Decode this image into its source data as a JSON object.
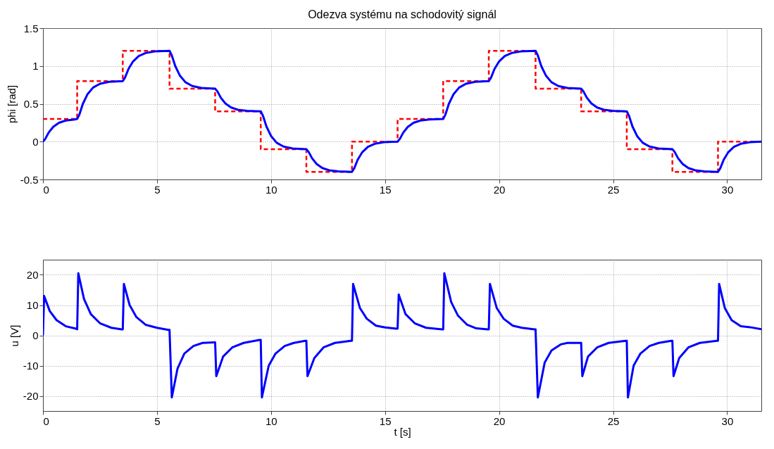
{
  "chart_data": [
    {
      "type": "line",
      "title": "Odezva systému na schodovitý signál",
      "ylabel": "phi [rad]",
      "xlim": [
        0,
        31.5
      ],
      "xticks": [
        0,
        5,
        10,
        15,
        20,
        25,
        30
      ],
      "ylim": [
        -0.5,
        1.5
      ],
      "yticks": [
        -0.5,
        0,
        0.5,
        1,
        1.5
      ],
      "grid": true,
      "series": [
        {
          "type": "step",
          "color": "#ff0000",
          "line_style": "dashed",
          "x": [
            0,
            1.5,
            3.5,
            5.55,
            7.55,
            9.55,
            11.55,
            13.55,
            15.55,
            17.55,
            19.55,
            21.6,
            23.6,
            25.6,
            27.6,
            29.6,
            31.5
          ],
          "values": [
            0.3,
            0.8,
            1.2,
            0.7,
            0.4,
            -0.1,
            -0.4,
            0,
            0.3,
            0.8,
            1.2,
            0.7,
            0.4,
            -0.1,
            -0.4,
            0,
            0
          ]
        },
        {
          "type": "line",
          "color": "#0000ff",
          "line_style": "solid",
          "x": [
            0,
            0.1,
            0.25,
            0.45,
            0.7,
            1.0,
            1.4,
            1.5,
            1.6,
            1.75,
            1.95,
            2.2,
            2.5,
            2.9,
            3.5,
            3.6,
            3.75,
            3.95,
            4.2,
            4.5,
            4.9,
            5.55,
            5.65,
            5.8,
            6.0,
            6.25,
            6.55,
            6.95,
            7.55,
            7.65,
            7.8,
            8.0,
            8.25,
            8.55,
            8.95,
            9.55,
            9.65,
            9.8,
            10.0,
            10.25,
            10.55,
            10.95,
            11.55,
            11.65,
            11.8,
            12.0,
            12.25,
            12.55,
            12.95,
            13.55,
            13.65,
            13.8,
            14.0,
            14.25,
            14.55,
            14.95,
            15.55,
            15.65,
            15.8,
            16.0,
            16.25,
            16.55,
            16.95,
            17.55,
            17.65,
            17.8,
            18.0,
            18.25,
            18.55,
            18.95,
            19.55,
            19.65,
            19.8,
            20.0,
            20.25,
            20.55,
            20.95,
            21.6,
            21.7,
            21.85,
            22.05,
            22.3,
            22.6,
            23.0,
            23.6,
            23.7,
            23.85,
            24.05,
            24.3,
            24.6,
            25.0,
            25.6,
            25.7,
            25.85,
            26.05,
            26.3,
            26.6,
            27.0,
            27.6,
            27.7,
            27.85,
            28.05,
            28.3,
            28.6,
            29.0,
            29.6,
            29.7,
            29.85,
            30.05,
            30.3,
            30.6,
            31.0,
            31.5
          ],
          "values": [
            0,
            0.036,
            0.12,
            0.195,
            0.249,
            0.279,
            0.294,
            0.3,
            0.36,
            0.5,
            0.625,
            0.715,
            0.765,
            0.79,
            0.8,
            0.848,
            0.96,
            1.06,
            1.132,
            1.172,
            1.192,
            1.2,
            1.14,
            1.0,
            0.875,
            0.785,
            0.735,
            0.71,
            0.7,
            0.664,
            0.58,
            0.505,
            0.451,
            0.421,
            0.406,
            0.4,
            0.34,
            0.2,
            0.075,
            -0.015,
            -0.065,
            -0.09,
            -0.1,
            -0.136,
            -0.22,
            -0.295,
            -0.349,
            -0.379,
            -0.394,
            -0.4,
            -0.352,
            -0.24,
            -0.14,
            -0.068,
            -0.028,
            -0.008,
            0,
            0.036,
            0.12,
            0.195,
            0.249,
            0.279,
            0.294,
            0.3,
            0.36,
            0.5,
            0.625,
            0.715,
            0.765,
            0.79,
            0.8,
            0.848,
            0.96,
            1.06,
            1.132,
            1.172,
            1.192,
            1.2,
            1.14,
            1.0,
            0.875,
            0.785,
            0.735,
            0.71,
            0.7,
            0.664,
            0.58,
            0.505,
            0.451,
            0.421,
            0.406,
            0.4,
            0.34,
            0.2,
            0.075,
            -0.015,
            -0.065,
            -0.09,
            -0.1,
            -0.136,
            -0.22,
            -0.295,
            -0.349,
            -0.379,
            -0.394,
            -0.4,
            -0.352,
            -0.24,
            -0.14,
            -0.068,
            -0.028,
            -0.008,
            0
          ]
        }
      ]
    },
    {
      "type": "line",
      "ylabel": "u [V]",
      "xlabel": "t [s]",
      "xlim": [
        0,
        31.5
      ],
      "xticks": [
        0,
        5,
        10,
        15,
        20,
        25,
        30
      ],
      "ylim": [
        -25,
        25
      ],
      "yticks": [
        -20,
        -10,
        0,
        10,
        20
      ],
      "grid": true,
      "series": [
        {
          "type": "line",
          "color": "#0000ff",
          "line_style": "solid",
          "x": [
            0,
            0.05,
            0.3,
            0.6,
            1.0,
            1.45,
            1.5,
            1.55,
            1.8,
            2.1,
            2.5,
            3.0,
            3.45,
            3.5,
            3.55,
            3.8,
            4.1,
            4.5,
            5.0,
            5.5,
            5.55,
            5.65,
            5.9,
            6.2,
            6.6,
            7.0,
            7.5,
            7.55,
            7.6,
            7.9,
            8.3,
            8.8,
            9.5,
            9.55,
            9.6,
            9.9,
            10.2,
            10.6,
            11.0,
            11.5,
            11.55,
            11.6,
            11.9,
            12.3,
            12.8,
            13.5,
            13.55,
            13.6,
            13.9,
            14.2,
            14.6,
            15.0,
            15.5,
            15.55,
            15.6,
            15.9,
            16.3,
            16.8,
            17.5,
            17.55,
            17.6,
            17.9,
            18.2,
            18.6,
            19.0,
            19.5,
            19.55,
            19.6,
            19.9,
            20.2,
            20.6,
            21.0,
            21.55,
            21.6,
            21.7,
            22.0,
            22.3,
            22.7,
            23.0,
            23.55,
            23.6,
            23.65,
            23.9,
            24.3,
            24.8,
            25.55,
            25.6,
            25.65,
            25.9,
            26.2,
            26.6,
            27.0,
            27.55,
            27.6,
            27.65,
            27.9,
            28.3,
            28.8,
            29.55,
            29.6,
            29.65,
            29.9,
            30.2,
            30.6,
            31.0,
            31.5
          ],
          "values": [
            0,
            13,
            8,
            5,
            3,
            2.2,
            2,
            20.5,
            12,
            7,
            4,
            2.5,
            2,
            2,
            17,
            10,
            6,
            3.5,
            2.5,
            1.8,
            1.8,
            -20.5,
            -11,
            -6,
            -3.5,
            -2.5,
            -2.3,
            -2.3,
            -13.5,
            -7,
            -4,
            -2.5,
            -1.5,
            -1.5,
            -20.5,
            -10,
            -6,
            -3.5,
            -2.5,
            -1.8,
            -1.8,
            -13.5,
            -7.5,
            -4,
            -2.5,
            -1.8,
            -1.8,
            17,
            9,
            5.5,
            3.2,
            2.6,
            2.2,
            2.2,
            13.5,
            7,
            4,
            2.5,
            2,
            2,
            20.5,
            11,
            6.5,
            3.5,
            2.3,
            2,
            2,
            17,
            9,
            5.5,
            3.2,
            2.5,
            2,
            2,
            -20.5,
            -9,
            -5,
            -3,
            -2.5,
            -2.5,
            -2.5,
            -13.5,
            -7,
            -4,
            -2.5,
            -1.8,
            -1.8,
            -20.5,
            -10,
            -6,
            -3.5,
            -2.5,
            -1.8,
            -1.8,
            -13.5,
            -7.5,
            -4,
            -2.5,
            -1.8,
            -1.8,
            17,
            9,
            5,
            3,
            2.7,
            2
          ]
        }
      ]
    }
  ]
}
